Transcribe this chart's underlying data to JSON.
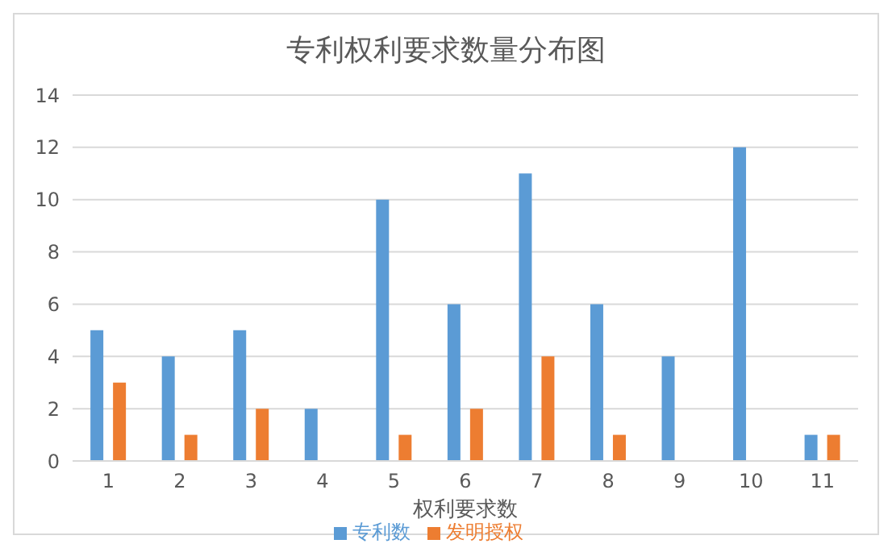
{
  "chart_data": {
    "type": "bar",
    "title": "专利权利要求数量分布图",
    "xlabel": "权利要求数",
    "categories": [
      "1",
      "2",
      "3",
      "4",
      "5",
      "6",
      "7",
      "8",
      "9",
      "10",
      "11"
    ],
    "series": [
      {
        "name": "专利数",
        "color": "#5b9bd5",
        "values": [
          5,
          4,
          5,
          2,
          10,
          6,
          11,
          6,
          4,
          12,
          1
        ]
      },
      {
        "name": "发明授权",
        "color": "#ed7d31",
        "values": [
          3,
          1,
          2,
          0,
          1,
          2,
          4,
          1,
          0,
          0,
          1
        ]
      }
    ],
    "ylim": [
      0,
      14
    ],
    "yticks": [
      0,
      2,
      4,
      6,
      8,
      10,
      12,
      14
    ],
    "grid": "y",
    "legend": "bottom"
  }
}
